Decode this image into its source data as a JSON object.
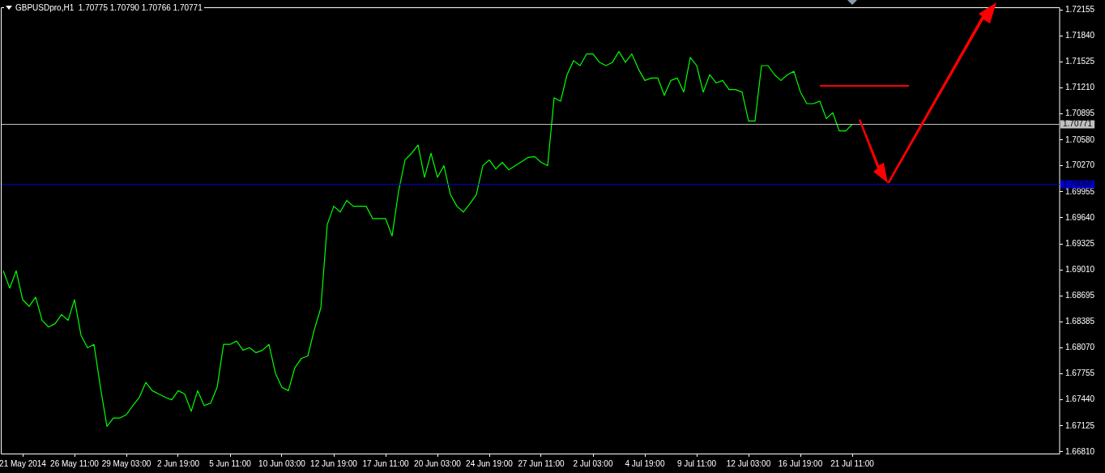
{
  "chart_data": {
    "type": "line",
    "title": "GBPUSDpro,H1  1.70775 1.70790 1.70766 1.70771",
    "categories": [
      null,
      null,
      null,
      "21 May 2014",
      null,
      null,
      null,
      null,
      null,
      null,
      null,
      "26 May 11:00",
      null,
      null,
      null,
      null,
      null,
      null,
      null,
      "29 May 03:00",
      null,
      null,
      null,
      null,
      null,
      null,
      null,
      "2 Jun 19:00",
      null,
      null,
      null,
      null,
      null,
      null,
      null,
      "5 Jun 11:00",
      null,
      null,
      null,
      null,
      null,
      null,
      null,
      "10 Jun 03:00",
      null,
      null,
      null,
      null,
      null,
      null,
      null,
      "12 Jun 19:00",
      null,
      null,
      null,
      null,
      null,
      null,
      null,
      "17 Jun 11:00",
      null,
      null,
      null,
      null,
      null,
      null,
      null,
      "20 Jun 03:00",
      null,
      null,
      null,
      null,
      null,
      null,
      null,
      "24 Jun 19:00",
      null,
      null,
      null,
      null,
      null,
      null,
      null,
      "27 Jun 11:00",
      null,
      null,
      null,
      null,
      null,
      null,
      null,
      "2 Jul 03:00",
      null,
      null,
      null,
      null,
      null,
      null,
      null,
      "4 Jul 19:00",
      null,
      null,
      null,
      null,
      null,
      null,
      null,
      "9 Jul 11:00",
      null,
      null,
      null,
      null,
      null,
      null,
      null,
      "12 Jul 03:00",
      null,
      null,
      null,
      null,
      null,
      null,
      null,
      "16 Jul 19:00",
      null,
      null,
      null,
      null,
      null,
      null,
      null,
      "21 Jul 11:00",
      null,
      null,
      null,
      null,
      null,
      null,
      null,
      null,
      null,
      null,
      null,
      null,
      null,
      null,
      null,
      null,
      null,
      null,
      null,
      null,
      null,
      null,
      null,
      null,
      null,
      null,
      null,
      null,
      null,
      null,
      null,
      null
    ],
    "series": [
      {
        "color": "#00ff00",
        "values": [
          1.69,
          1.6879,
          1.69,
          1.6865,
          1.6857,
          1.6868,
          1.684,
          1.6832,
          1.6836,
          1.6847,
          1.684,
          1.6865,
          1.6822,
          1.6807,
          1.6811,
          1.6759,
          1.6712,
          1.6722,
          1.6722,
          1.6726,
          1.6737,
          1.6747,
          1.6765,
          1.6755,
          1.6751,
          1.6747,
          1.6744,
          1.6755,
          1.6751,
          1.673,
          1.6755,
          1.6737,
          1.674,
          1.6759,
          1.6811,
          1.6811,
          1.6815,
          1.6804,
          1.6807,
          1.6801,
          1.6804,
          1.6811,
          1.6776,
          1.6759,
          1.6755,
          1.6783,
          1.6794,
          1.6797,
          1.6829,
          1.6855,
          1.6956,
          1.6978,
          1.6971,
          1.6985,
          1.6978,
          1.6978,
          1.6978,
          1.6963,
          1.6963,
          1.6963,
          1.6942,
          1.6996,
          1.7034,
          1.7042,
          1.7052,
          1.7013,
          1.7042,
          1.7013,
          1.7027,
          1.6992,
          1.6978,
          1.6971,
          1.6981,
          1.6992,
          1.7027,
          1.7034,
          1.7023,
          1.7031,
          1.7022,
          1.7027,
          1.7032,
          1.7037,
          1.7038,
          1.7031,
          1.7027,
          1.7109,
          1.7105,
          1.7137,
          1.7154,
          1.7148,
          1.7162,
          1.7162,
          1.7152,
          1.7148,
          1.7152,
          1.7165,
          1.7152,
          1.7162,
          1.7144,
          1.713,
          1.7133,
          1.7133,
          1.7112,
          1.713,
          1.7133,
          1.7116,
          1.7158,
          1.7148,
          1.7116,
          1.7137,
          1.7127,
          1.713,
          1.7119,
          1.7119,
          1.7116,
          1.7081,
          1.7081,
          1.7148,
          1.7148,
          1.7137,
          1.713,
          1.7137,
          1.7141,
          1.7116,
          1.7102,
          1.7102,
          1.7105,
          1.7084,
          1.7091,
          1.7069,
          1.7069,
          1.7077,
          null,
          null,
          null,
          null,
          null,
          null,
          null,
          null,
          null,
          null,
          null,
          null,
          null,
          null,
          null,
          null,
          null,
          null,
          null,
          null,
          null,
          null,
          null,
          null,
          null,
          null,
          null,
          null,
          null,
          null,
          null,
          null
        ]
      }
    ],
    "ylim": [
      1.6679,
      1.72185
    ],
    "yticks": [
      {
        "value": 1.72155,
        "label": "1.72155"
      },
      {
        "value": 1.7184,
        "label": "1.71840"
      },
      {
        "value": 1.71525,
        "label": "1.71525"
      },
      {
        "value": 1.7121,
        "label": "1.71210"
      },
      {
        "value": 1.70895,
        "label": "1.70895"
      },
      {
        "value": 1.7058,
        "label": "1.70580"
      },
      {
        "value": 1.7027,
        "label": "1.70270"
      },
      {
        "value": 1.69955,
        "label": "1.69955"
      },
      {
        "value": 1.6964,
        "label": "1.69640"
      },
      {
        "value": 1.69325,
        "label": "1.69325"
      },
      {
        "value": 1.6901,
        "label": "1.69010"
      },
      {
        "value": 1.68695,
        "label": "1.68695"
      },
      {
        "value": 1.68385,
        "label": "1.68385"
      },
      {
        "value": 1.6807,
        "label": "1.68070"
      },
      {
        "value": 1.67755,
        "label": "1.67755"
      },
      {
        "value": 1.6744,
        "label": "1.67440"
      },
      {
        "value": 1.67125,
        "label": "1.67125"
      },
      {
        "value": 1.6681,
        "label": "1.66810"
      }
    ],
    "ref_lines": [
      {
        "axis": "y",
        "value": 1.70771,
        "label": "1.70771",
        "color": "#c0c0c0"
      },
      {
        "axis": "y",
        "value": 1.7005,
        "label": "1.70050",
        "color": "#0000cc"
      }
    ],
    "grid": false,
    "legend": false
  }
}
